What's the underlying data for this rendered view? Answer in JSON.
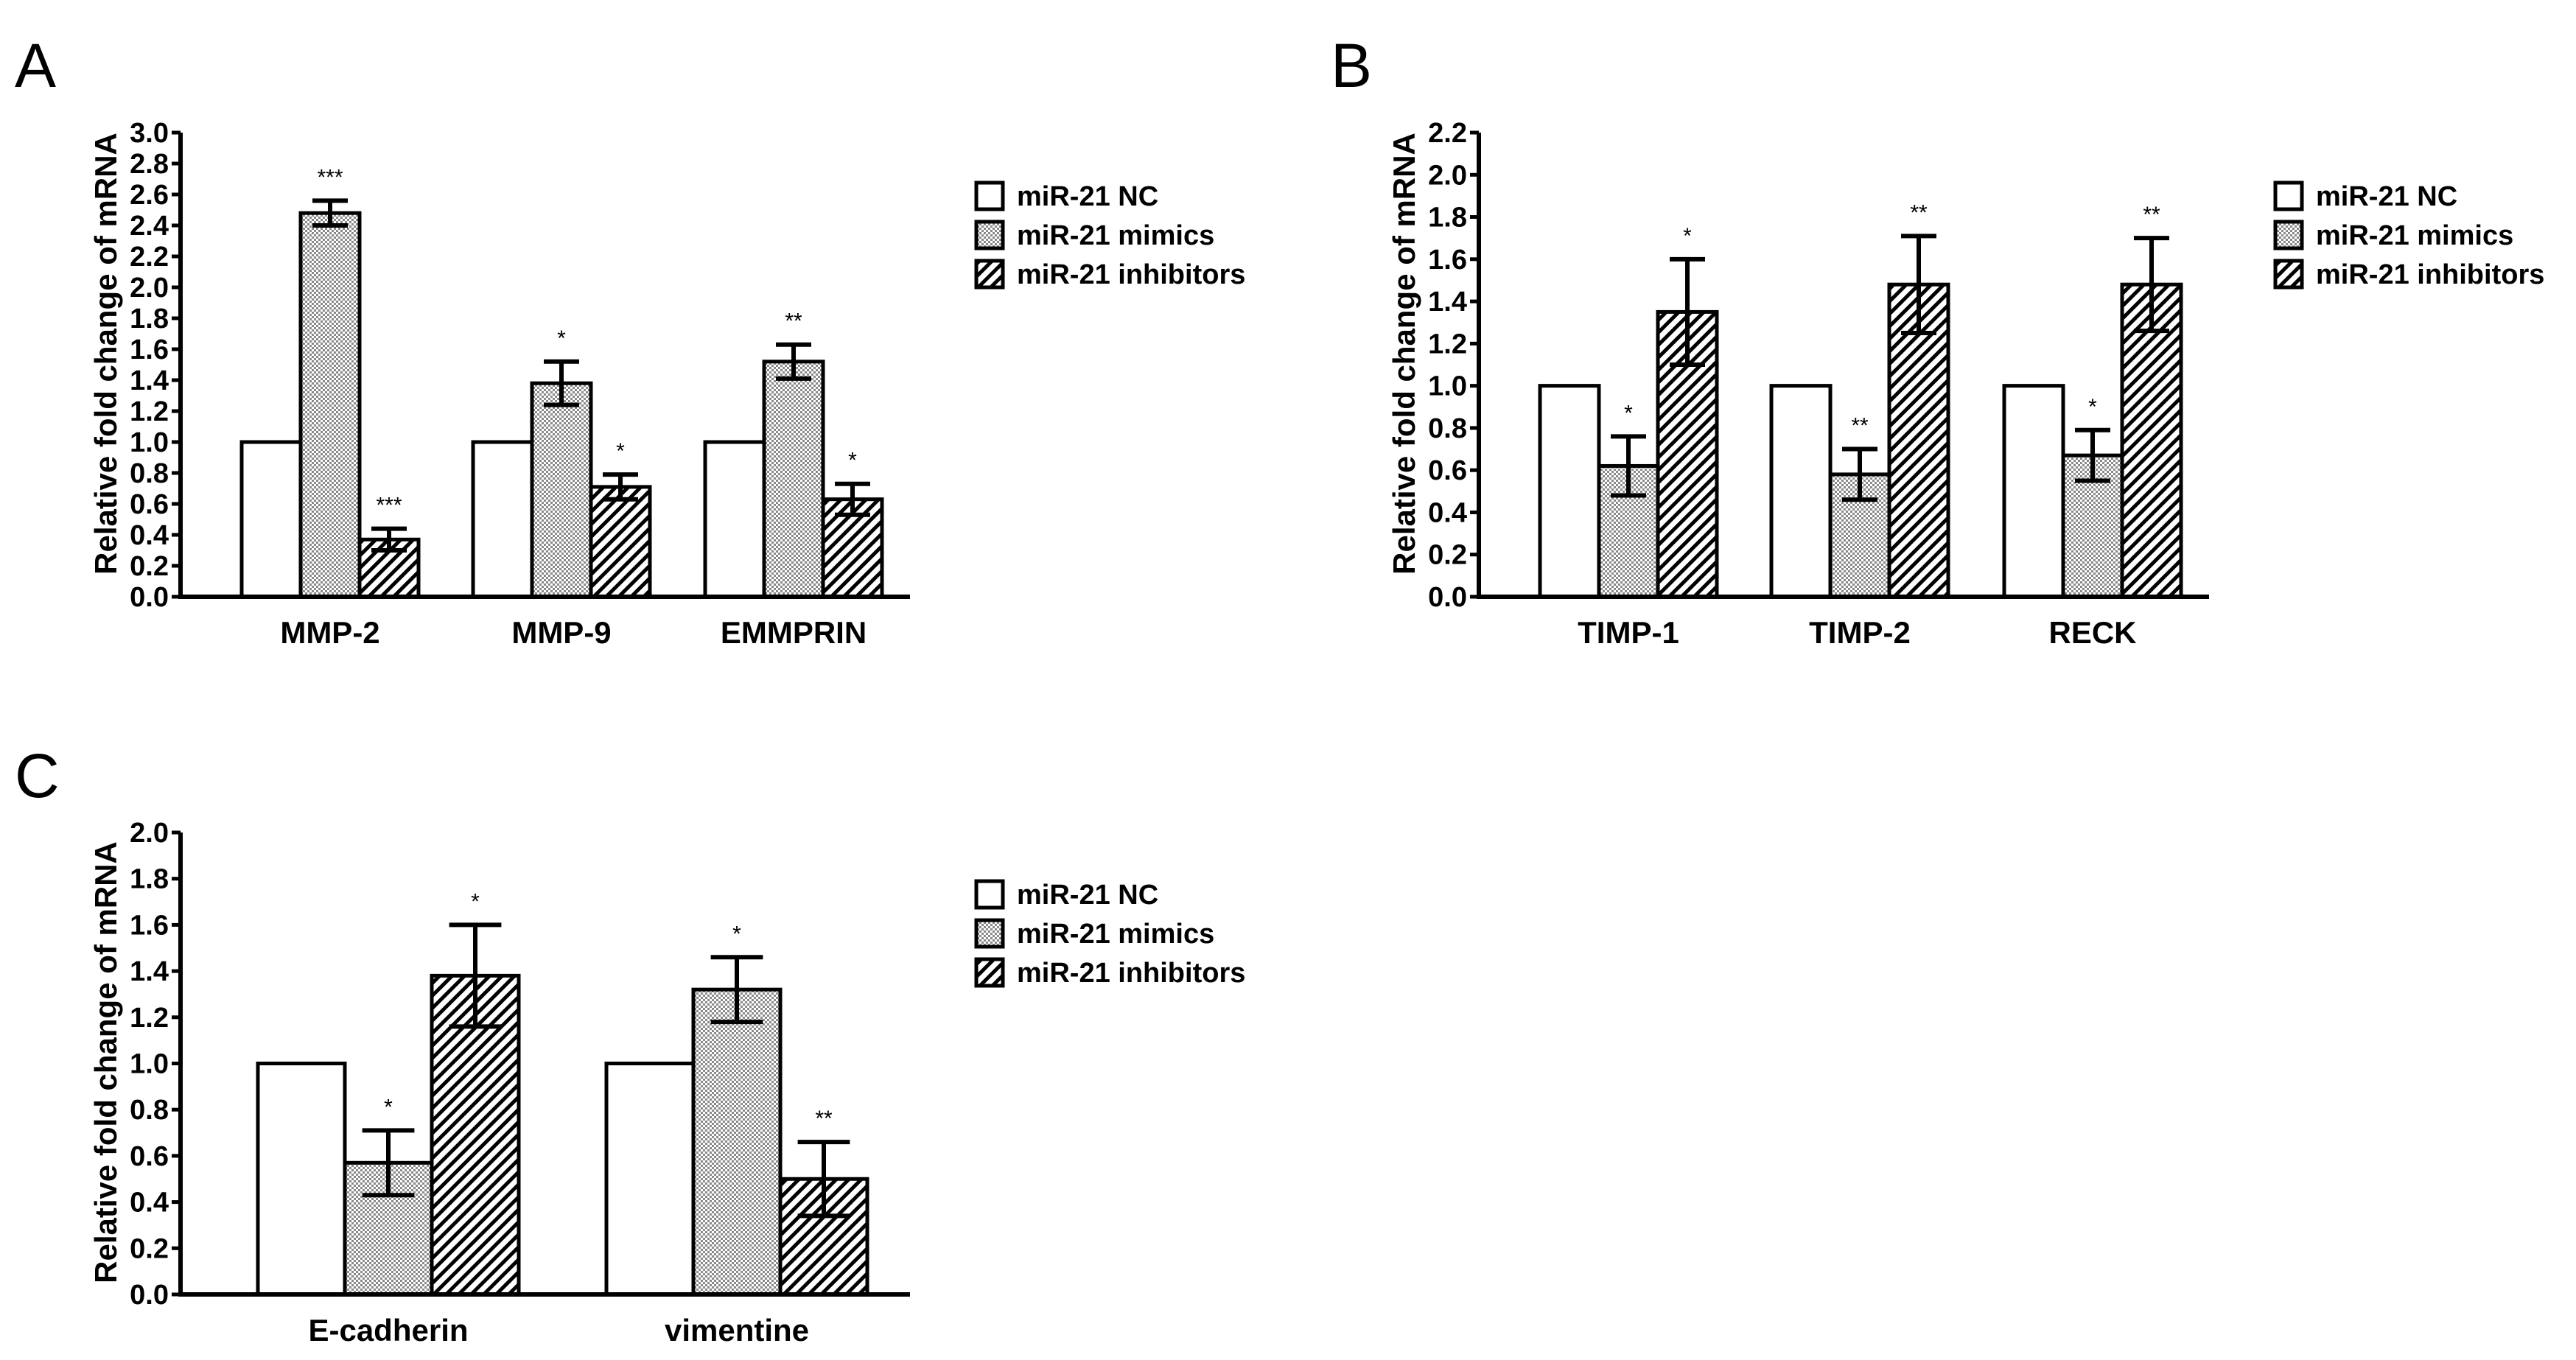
{
  "chart_data": [
    {
      "type": "bar",
      "panel": "A",
      "title": "",
      "xlabel": "",
      "ylabel": "Relative fold change of mRNA",
      "ylim": [
        0,
        3.0
      ],
      "yticks": [
        "0.0",
        "0.2",
        "0.4",
        "0.6",
        "0.8",
        "1.0",
        "1.2",
        "1.4",
        "1.6",
        "1.8",
        "2.0",
        "2.2",
        "2.4",
        "2.6",
        "2.8",
        "3.0"
      ],
      "categories": [
        "MMP-2",
        "MMP-9",
        "EMMPRIN"
      ],
      "series": [
        {
          "name": "miR-21 NC",
          "pattern": "open",
          "values": [
            1.0,
            1.0,
            1.0
          ],
          "errors": [
            0,
            0,
            0
          ],
          "sig": [
            "",
            "",
            ""
          ]
        },
        {
          "name": "miR-21 mimics",
          "pattern": "dots",
          "values": [
            2.48,
            1.38,
            1.52
          ],
          "errors": [
            0.08,
            0.14,
            0.11
          ],
          "sig": [
            "***",
            "*",
            "**"
          ]
        },
        {
          "name": "miR-21 inhibitors",
          "pattern": "hatch",
          "values": [
            0.37,
            0.71,
            0.63
          ],
          "errors": [
            0.07,
            0.08,
            0.1
          ],
          "sig": [
            "***",
            "*",
            "*"
          ]
        }
      ]
    },
    {
      "type": "bar",
      "panel": "B",
      "title": "",
      "xlabel": "",
      "ylabel": "Relative fold change of mRNA",
      "ylim": [
        0,
        2.2
      ],
      "yticks": [
        "0.0",
        "0.2",
        "0.4",
        "0.6",
        "0.8",
        "1.0",
        "1.2",
        "1.4",
        "1.6",
        "1.8",
        "2.0",
        "2.2"
      ],
      "categories": [
        "TIMP-1",
        "TIMP-2",
        "RECK"
      ],
      "series": [
        {
          "name": "miR-21 NC",
          "pattern": "open",
          "values": [
            1.0,
            1.0,
            1.0
          ],
          "errors": [
            0,
            0,
            0
          ],
          "sig": [
            "",
            "",
            ""
          ]
        },
        {
          "name": "miR-21 mimics",
          "pattern": "dots",
          "values": [
            0.62,
            0.58,
            0.67
          ],
          "errors": [
            0.14,
            0.12,
            0.12
          ],
          "sig": [
            "*",
            "**",
            "*"
          ]
        },
        {
          "name": "miR-21 inhibitors",
          "pattern": "hatch",
          "values": [
            1.35,
            1.48,
            1.48
          ],
          "errors": [
            0.25,
            0.23,
            0.22
          ],
          "sig": [
            "*",
            "**",
            "**"
          ]
        }
      ]
    },
    {
      "type": "bar",
      "panel": "C",
      "title": "",
      "xlabel": "",
      "ylabel": "Relative fold change of mRNA",
      "ylim": [
        0,
        2.0
      ],
      "yticks": [
        "0.0",
        "0.2",
        "0.4",
        "0.6",
        "0.8",
        "1.0",
        "1.2",
        "1.4",
        "1.6",
        "1.8",
        "2.0"
      ],
      "categories": [
        "E-cadherin",
        "vimentine"
      ],
      "series": [
        {
          "name": "miR-21 NC",
          "pattern": "open",
          "values": [
            1.0,
            1.0
          ],
          "errors": [
            0,
            0
          ],
          "sig": [
            "",
            ""
          ]
        },
        {
          "name": "miR-21 mimics",
          "pattern": "dots",
          "values": [
            0.57,
            1.32
          ],
          "errors": [
            0.14,
            0.14
          ],
          "sig": [
            "*",
            "*"
          ]
        },
        {
          "name": "miR-21 inhibitors",
          "pattern": "hatch",
          "values": [
            1.38,
            0.5
          ],
          "errors": [
            0.22,
            0.16
          ],
          "sig": [
            "*",
            "**"
          ]
        }
      ]
    }
  ]
}
